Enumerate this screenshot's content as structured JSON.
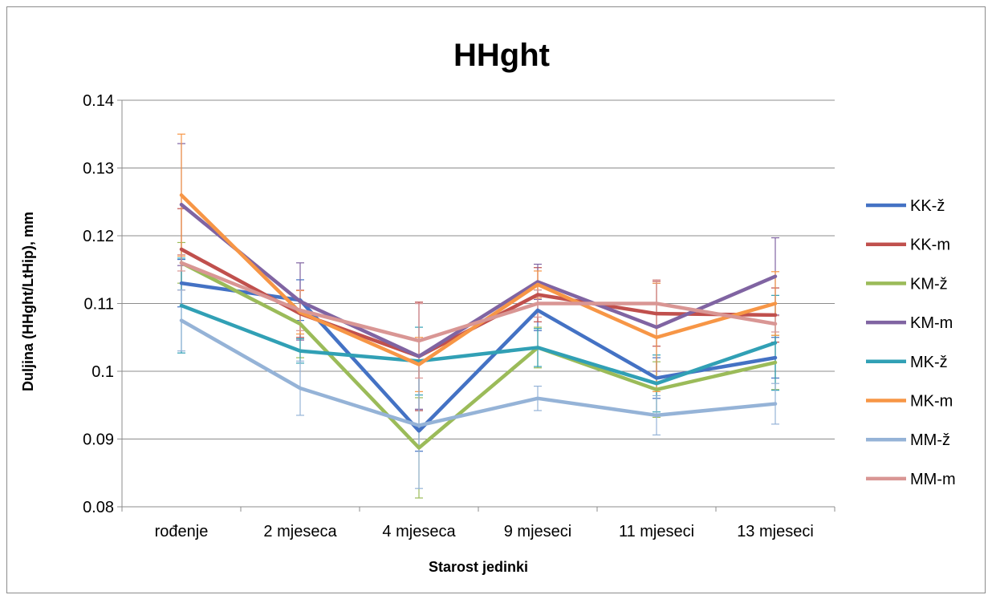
{
  "chart_data": {
    "type": "line",
    "title": "HHght",
    "xlabel": "Starost jedinki",
    "ylabel": "Duljina (HHght/LtHip), mm",
    "ylim": [
      0.08,
      0.14
    ],
    "yticks": [
      "0.08",
      "0.09",
      "0.1",
      "0.11",
      "0.12",
      "0.13",
      "0.14"
    ],
    "categories": [
      "rođenje",
      "2 mjeseca",
      "4 mjeseca",
      "9 mjeseci",
      "11 mjeseci",
      "13 mjeseci"
    ],
    "grid": true,
    "legend_position": "right",
    "series": [
      {
        "name": "KK-ž",
        "color": "#4472c4",
        "values": [
          0.113,
          0.1105,
          0.0912,
          0.109,
          0.099,
          0.102
        ],
        "errors": [
          0.0035,
          0.003,
          0.003,
          0.003,
          0.003,
          0.003
        ]
      },
      {
        "name": "KK-m",
        "color": "#c0504d",
        "values": [
          0.118,
          0.1085,
          0.1022,
          0.1113,
          0.1085,
          0.1083
        ],
        "errors": [
          0.006,
          0.0035,
          0.008,
          0.004,
          0.0048,
          0.004
        ]
      },
      {
        "name": "KM-ž",
        "color": "#9bbb59",
        "values": [
          0.116,
          0.107,
          0.0887,
          0.1035,
          0.0973,
          0.1013
        ],
        "errors": [
          0.003,
          0.005,
          0.0074,
          0.003,
          0.0041,
          0.004
        ]
      },
      {
        "name": "KM-m",
        "color": "#8064a2",
        "values": [
          0.1246,
          0.1103,
          0.1022,
          0.1132,
          0.1065,
          0.114
        ],
        "errors": [
          0.009,
          0.0057,
          0.0078,
          0.0026,
          0.0065,
          0.0057
        ]
      },
      {
        "name": "MK-ž",
        "color": "#31a0b5",
        "values": [
          0.1097,
          0.103,
          0.1015,
          0.1035,
          0.0982,
          0.1042
        ],
        "errors": [
          0.007,
          0.0018,
          0.005,
          0.0028,
          0.0042,
          0.007
        ]
      },
      {
        "name": "MK-m",
        "color": "#f79646",
        "values": [
          0.126,
          0.1087,
          0.101,
          0.1128,
          0.105,
          0.11
        ],
        "errors": [
          0.009,
          0.0032,
          0.004,
          0.002,
          0.008,
          0.0047
        ]
      },
      {
        "name": "MM-ž",
        "color": "#95b3d7",
        "values": [
          0.1075,
          0.0975,
          0.092,
          0.096,
          0.0935,
          0.0952
        ],
        "errors": [
          0.0045,
          0.004,
          0.0093,
          0.0018,
          0.0029,
          0.003
        ]
      },
      {
        "name": "MM-m",
        "color": "#d99694",
        "values": [
          0.116,
          0.109,
          0.1045,
          0.11,
          0.11,
          0.107
        ],
        "errors": [
          0.0012,
          0.003,
          0.0055,
          0.002,
          0.0035,
          0.0012
        ]
      }
    ]
  }
}
